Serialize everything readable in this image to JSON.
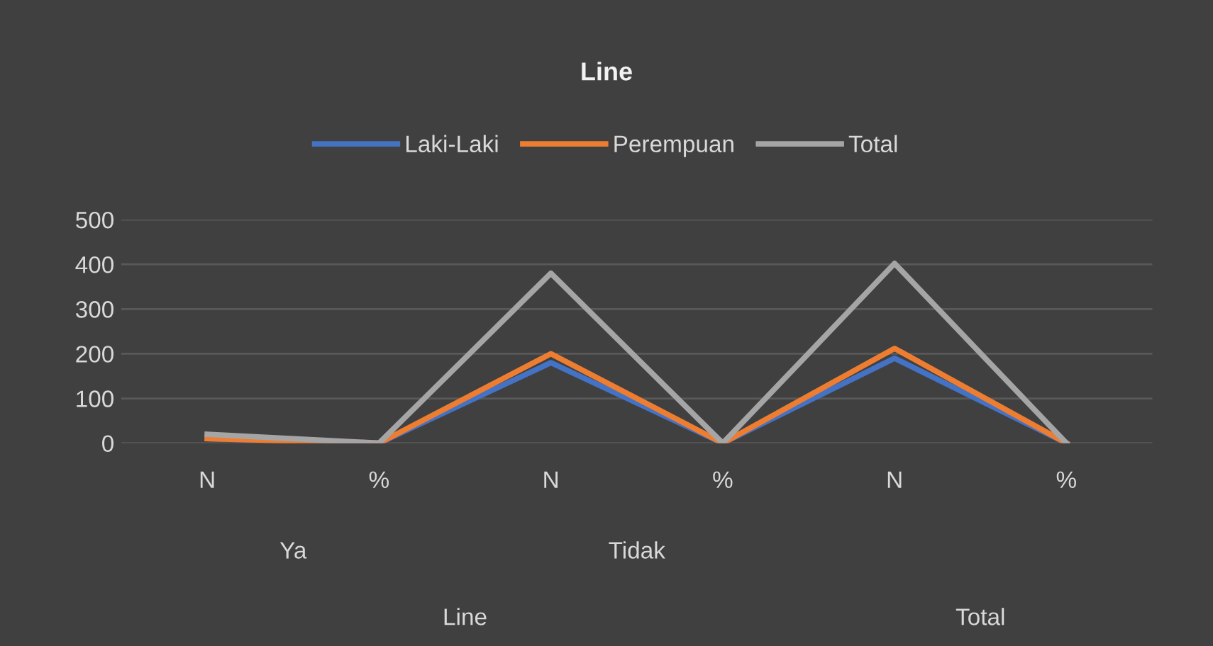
{
  "chart_data": {
    "type": "line",
    "title": "Line",
    "categories": [
      "N",
      "%",
      "N",
      "%",
      "N",
      "%"
    ],
    "series": [
      {
        "name": "Laki-Laki",
        "color": "#4472c4",
        "values": [
          10,
          0,
          180,
          0,
          190,
          0
        ]
      },
      {
        "name": "Perempuan",
        "color": "#ed7d31",
        "values": [
          10,
          0,
          200,
          0,
          212,
          0
        ]
      },
      {
        "name": "Total",
        "color": "#a5a5a5",
        "values": [
          20,
          0,
          380,
          0,
          402,
          0
        ]
      }
    ],
    "annotations": [
      "Ya",
      "Tidak",
      "Line",
      "Total"
    ],
    "ylim": [
      0,
      500
    ],
    "yticks": [
      0,
      100,
      200,
      300,
      400,
      500
    ],
    "grid": "y",
    "legend": "top",
    "marker": "none",
    "line_style": "solid"
  }
}
